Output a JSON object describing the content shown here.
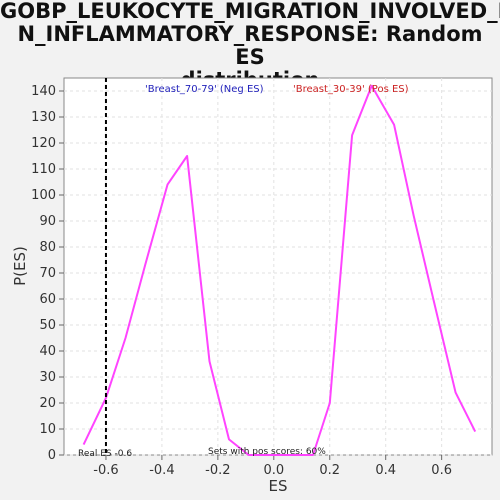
{
  "chart_data": {
    "type": "line",
    "title": "GOBP_LEUKOCYTE_MIGRATION_INVOLVED_IN_INFLAMMATORY_RESPONSE: Random ES distribution",
    "title_lines": [
      "GOBP_LEUKOCYTE_MIGRATION_INVOLVED_I",
      "N_INFLAMMATORY_RESPONSE: Random ES",
      "distribution"
    ],
    "xlabel": "ES",
    "ylabel": "P(ES)",
    "xlim": [
      -0.75,
      0.78
    ],
    "ylim": [
      0,
      145
    ],
    "x_ticks": [
      -0.6,
      -0.4,
      -0.2,
      0.0,
      0.2,
      0.4,
      0.6
    ],
    "x_tick_labels": [
      "-0.6",
      "-0.4",
      "-0.2",
      "0.0",
      "0.2",
      "0.4",
      "0.6"
    ],
    "y_ticks": [
      0,
      10,
      20,
      30,
      40,
      50,
      60,
      70,
      80,
      90,
      100,
      110,
      120,
      130,
      140
    ],
    "y_tick_labels": [
      "0",
      "10",
      "20",
      "30",
      "40",
      "50",
      "60",
      "70",
      "80",
      "90",
      "100",
      "110",
      "120",
      "130",
      "140"
    ],
    "grid": true,
    "series": [
      {
        "color": "#ff44ff",
        "x": [
          -0.68,
          -0.6,
          -0.53,
          -0.46,
          -0.38,
          -0.31,
          -0.23,
          -0.16,
          -0.09,
          0.0,
          0.07,
          0.14,
          0.2,
          0.28,
          0.35,
          0.43,
          0.5,
          0.57,
          0.65,
          0.72
        ],
        "y": [
          4,
          22,
          45,
          73,
          104,
          115,
          36,
          6,
          0,
          0,
          0,
          0,
          20,
          123,
          142,
          127,
          92,
          60,
          24,
          9
        ]
      }
    ],
    "legend": [
      {
        "label": "'Breast_70-79' (Neg ES)",
        "color": "#2222bb"
      },
      {
        "label": "'Breast_30-39' (Pos ES)",
        "color": "#cc2222"
      }
    ],
    "vline": {
      "x": -0.6,
      "style": "dashed",
      "color": "#000000"
    },
    "annotations": {
      "real_es": "Real ES -0.6",
      "pos_scores": "Sets with pos scores: 60%"
    }
  }
}
